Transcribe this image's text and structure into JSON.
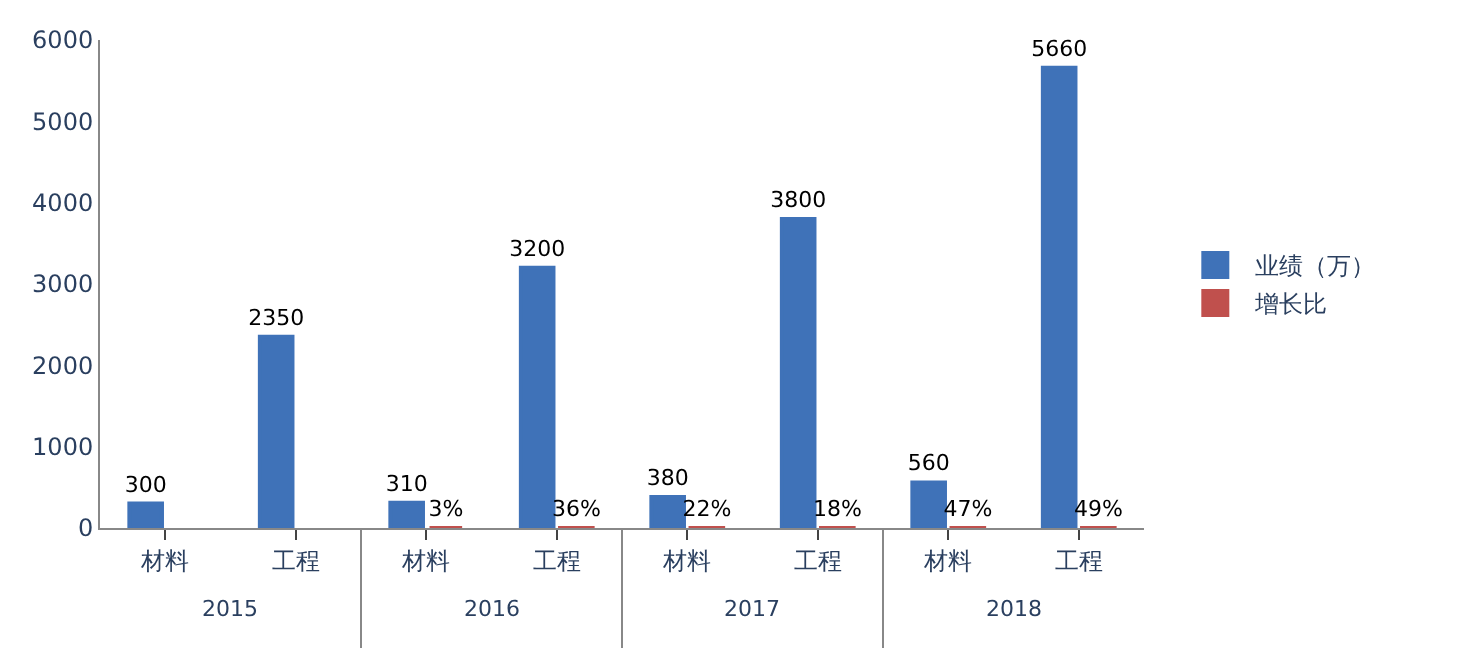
{
  "chart_data": {
    "type": "bar",
    "categories": [
      "材料",
      "工程",
      "材料",
      "工程",
      "材料",
      "工程",
      "材料",
      "工程"
    ],
    "series": [
      {
        "name": "业绩（万）",
        "color": "#3f72b8",
        "values": [
          300,
          2350,
          310,
          3200,
          380,
          3800,
          560,
          5660
        ],
        "value_labels": [
          "300",
          "2350",
          "310",
          "3200",
          "380",
          "3800",
          "560",
          "5660"
        ]
      },
      {
        "name": "增长比",
        "color": "#c0504d",
        "values": [
          null,
          null,
          0.03,
          0.36,
          0.22,
          0.18,
          0.47,
          0.49
        ],
        "value_labels": [
          null,
          null,
          "3%",
          "36%",
          "22%",
          "18%",
          "47%",
          "49%"
        ]
      }
    ],
    "annotations": [
      "2015",
      "2016",
      "2017",
      "2018"
    ],
    "ylim": [
      0,
      6000
    ],
    "yticks": [
      0,
      1000,
      2000,
      3000,
      4000,
      5000,
      6000
    ],
    "legend": "right"
  }
}
